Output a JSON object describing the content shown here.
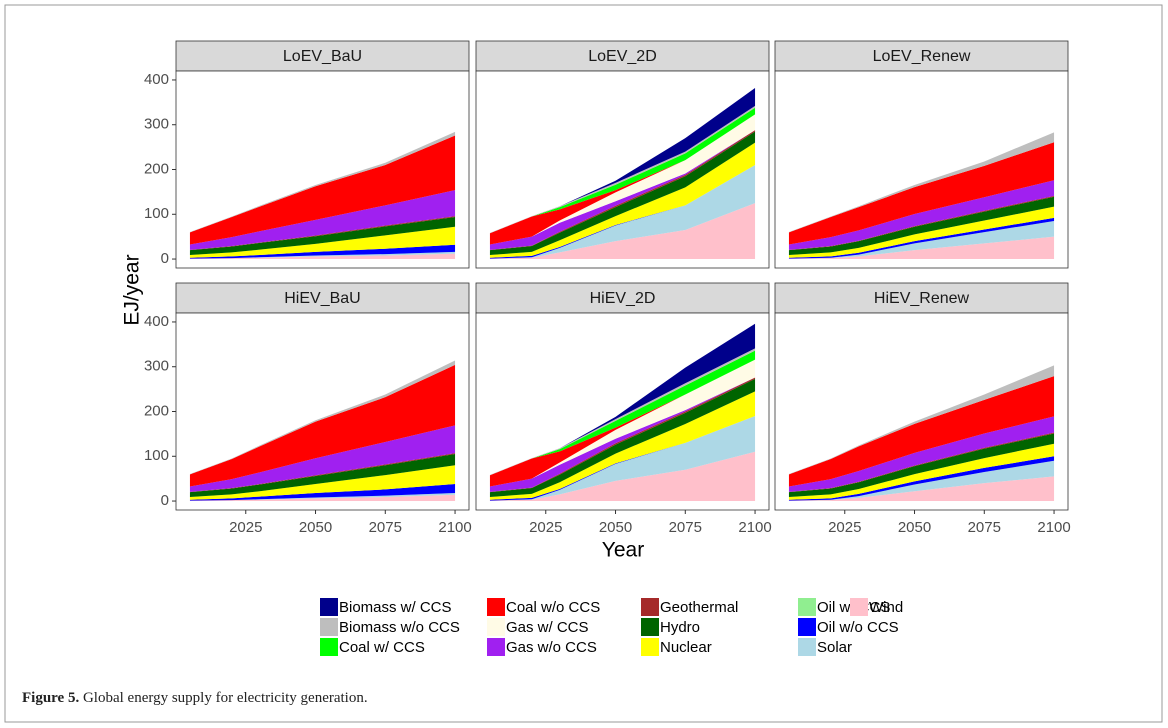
{
  "chart_data": {
    "type": "area",
    "stacked": true,
    "x_label": "Year",
    "y_label": "EJ/year",
    "x": [
      2005,
      2020,
      2030,
      2050,
      2075,
      2100
    ],
    "xlim": [
      2000,
      2105
    ],
    "xticks": [
      2025,
      2050,
      2075,
      2100
    ],
    "ylim": [
      -20,
      420
    ],
    "yticks": [
      0,
      100,
      200,
      300,
      400
    ],
    "grid": false,
    "legend": "bottom",
    "series": [
      {
        "name": "Biomass w/ CCS",
        "color": "#00008b"
      },
      {
        "name": "Biomass w/o CCS",
        "color": "#bebebe"
      },
      {
        "name": "Coal w/ CCS",
        "color": "#00ff00"
      },
      {
        "name": "Coal w/o CCS",
        "color": "#ff0000"
      },
      {
        "name": "Gas w/ CCS",
        "color": "#fffbe6"
      },
      {
        "name": "Gas w/o CCS",
        "color": "#a020f0"
      },
      {
        "name": "Geothermal",
        "color": "#a52a2a"
      },
      {
        "name": "Hydro",
        "color": "#006400"
      },
      {
        "name": "Nuclear",
        "color": "#ffff00"
      },
      {
        "name": "Oil w/ CCS",
        "color": "#90ee90"
      },
      {
        "name": "Oil w/o CCS",
        "color": "#0000ff"
      },
      {
        "name": "Solar",
        "color": "#add8e6"
      },
      {
        "name": "Wind",
        "color": "#ffc0cb"
      }
    ],
    "panels": [
      {
        "title": "LoEV_BaU",
        "values": [
          [
            0,
            0,
            0,
            0,
            0,
            0
          ],
          [
            1,
            1,
            2,
            3,
            5,
            8
          ],
          [
            0,
            0,
            0,
            0,
            0,
            0
          ],
          [
            27,
            45,
            55,
            75,
            90,
            122
          ],
          [
            0,
            0,
            0,
            0,
            0,
            0
          ],
          [
            12,
            20,
            25,
            35,
            45,
            58
          ],
          [
            0.5,
            1,
            1,
            1.5,
            2,
            2
          ],
          [
            11,
            13,
            15,
            17,
            20,
            22
          ],
          [
            6,
            9,
            12,
            18,
            30,
            40
          ],
          [
            0,
            0,
            0,
            0,
            0,
            0
          ],
          [
            2,
            4,
            5,
            8,
            12,
            16
          ],
          [
            0,
            0,
            1,
            2,
            3,
            4
          ],
          [
            1,
            2,
            3,
            6,
            8,
            12
          ]
        ]
      },
      {
        "title": "LoEV_2D",
        "values": [
          [
            0,
            0,
            0,
            5,
            30,
            40
          ],
          [
            1,
            1,
            2,
            4,
            4,
            4
          ],
          [
            0,
            0,
            5,
            12,
            15,
            15
          ],
          [
            25,
            45,
            25,
            5,
            0,
            0
          ],
          [
            0,
            0,
            5,
            20,
            30,
            35
          ],
          [
            12,
            20,
            20,
            10,
            3,
            0
          ],
          [
            0.5,
            1,
            2,
            3,
            3,
            3
          ],
          [
            11,
            13,
            17,
            20,
            25,
            25
          ],
          [
            6,
            9,
            15,
            20,
            40,
            50
          ],
          [
            0,
            0,
            0,
            0,
            0,
            0
          ],
          [
            2,
            3,
            2,
            1,
            0,
            0
          ],
          [
            0,
            1,
            10,
            35,
            55,
            85
          ],
          [
            1,
            3,
            15,
            40,
            65,
            125
          ]
        ]
      },
      {
        "title": "LoEV_Renew",
        "values": [
          [
            0,
            0,
            0,
            0,
            0,
            0
          ],
          [
            1,
            1,
            2,
            5,
            10,
            22
          ],
          [
            0,
            0,
            0,
            0,
            0,
            0
          ],
          [
            27,
            45,
            52,
            60,
            70,
            85
          ],
          [
            0,
            0,
            0,
            0,
            0,
            0
          ],
          [
            12,
            20,
            23,
            27,
            30,
            35
          ],
          [
            0.5,
            1,
            1,
            1.5,
            2,
            2
          ],
          [
            11,
            13,
            15,
            17,
            20,
            22
          ],
          [
            6,
            9,
            11,
            15,
            20,
            25
          ],
          [
            0,
            0,
            0,
            0,
            0,
            0
          ],
          [
            2,
            3,
            4,
            5,
            6,
            7
          ],
          [
            0,
            1,
            4,
            15,
            25,
            35
          ],
          [
            1,
            2,
            6,
            20,
            35,
            50
          ]
        ]
      },
      {
        "title": "HiEV_BaU",
        "values": [
          [
            0,
            0,
            0,
            0,
            0,
            0
          ],
          [
            1,
            1,
            2,
            3,
            6,
            10
          ],
          [
            0,
            0,
            0,
            0,
            0,
            0
          ],
          [
            27,
            45,
            58,
            82,
            100,
            135
          ],
          [
            0,
            0,
            0,
            0,
            0,
            0
          ],
          [
            12,
            20,
            26,
            38,
            50,
            62
          ],
          [
            0.5,
            1,
            1,
            1.5,
            2,
            2
          ],
          [
            11,
            13,
            15,
            18,
            22,
            25
          ],
          [
            6,
            9,
            12,
            20,
            32,
            42
          ],
          [
            0,
            0,
            0,
            0,
            0,
            0
          ],
          [
            2,
            4,
            6,
            10,
            14,
            20
          ],
          [
            0,
            0,
            1,
            2,
            3,
            4
          ],
          [
            1,
            2,
            3,
            6,
            9,
            14
          ]
        ]
      },
      {
        "title": "HiEV_2D",
        "values": [
          [
            0,
            0,
            0,
            5,
            35,
            55
          ],
          [
            1,
            1,
            2,
            4,
            5,
            5
          ],
          [
            0,
            0,
            5,
            15,
            20,
            20
          ],
          [
            25,
            45,
            25,
            5,
            0,
            0
          ],
          [
            0,
            0,
            5,
            20,
            35,
            40
          ],
          [
            12,
            20,
            20,
            10,
            3,
            0
          ],
          [
            0.5,
            1,
            2,
            3,
            3,
            3
          ],
          [
            11,
            13,
            17,
            20,
            25,
            28
          ],
          [
            6,
            9,
            15,
            22,
            42,
            55
          ],
          [
            0,
            0,
            0,
            0,
            0,
            0
          ],
          [
            2,
            3,
            2,
            1,
            0,
            0
          ],
          [
            0,
            1,
            10,
            38,
            60,
            80
          ],
          [
            1,
            3,
            15,
            45,
            70,
            110
          ]
        ]
      },
      {
        "title": "HiEV_Renew",
        "values": [
          [
            0,
            0,
            0,
            0,
            0,
            0
          ],
          [
            1,
            1,
            2,
            5,
            12,
            24
          ],
          [
            0,
            0,
            0,
            0,
            0,
            0
          ],
          [
            27,
            45,
            55,
            65,
            75,
            90
          ],
          [
            0,
            0,
            0,
            0,
            0,
            0
          ],
          [
            12,
            20,
            24,
            28,
            32,
            36
          ],
          [
            0.5,
            1,
            1,
            1.5,
            2,
            2
          ],
          [
            11,
            13,
            15,
            18,
            21,
            23
          ],
          [
            6,
            9,
            11,
            16,
            22,
            28
          ],
          [
            0,
            0,
            0,
            0,
            0,
            0
          ],
          [
            2,
            3,
            5,
            7,
            9,
            10
          ],
          [
            0,
            1,
            4,
            15,
            25,
            35
          ],
          [
            1,
            2,
            7,
            22,
            40,
            55
          ]
        ]
      }
    ]
  },
  "caption": {
    "label": "Figure 5.",
    "text": "Global energy supply for electricity generation."
  }
}
